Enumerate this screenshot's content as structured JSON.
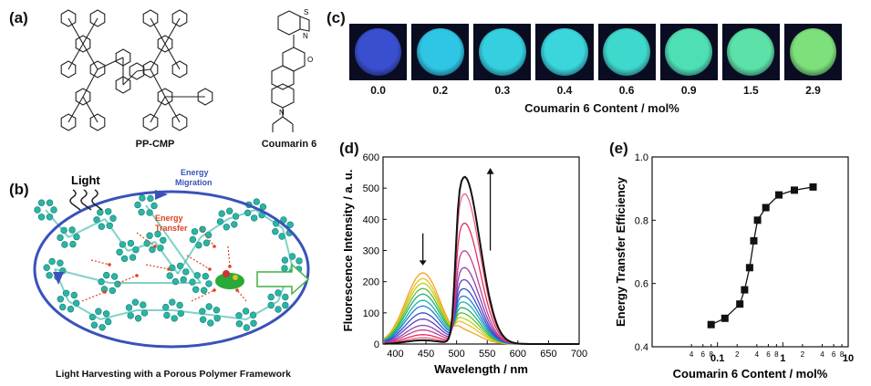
{
  "panels": {
    "a": {
      "label": "(a)",
      "molecule1": "PP-CMP",
      "molecule2": "Coumarin 6"
    },
    "b": {
      "label": "(b)",
      "light": "Light",
      "migration": "Energy\nMigration",
      "migration_l1": "Energy",
      "migration_l2": "Migration",
      "transfer_l1": "Energy",
      "transfer_l2": "Transfer",
      "caption": "Light Harvesting with a Porous Polymer Framework"
    },
    "c": {
      "label": "(c)",
      "values": [
        "0.0",
        "0.2",
        "0.3",
        "0.4",
        "0.6",
        "0.9",
        "1.5",
        "2.9"
      ],
      "xlabel": "Coumarin 6 Content / mol%",
      "dish_colors": [
        "#3a4fd0",
        "#2fc6e6",
        "#35d0e0",
        "#3ad6dc",
        "#3ed8cc",
        "#4ee0b4",
        "#5ce2a8",
        "#7ee07a"
      ]
    },
    "d": {
      "label": "(d)"
    },
    "e": {
      "label": "(e)"
    }
  },
  "chart_data": [
    {
      "type": "line",
      "panel": "d",
      "xlabel": "Wavelength / nm",
      "ylabel": "Fluorescence Intensity / a. u.",
      "xlim": [
        380,
        700
      ],
      "ylim": [
        0,
        600
      ],
      "xticks": [
        400,
        450,
        500,
        550,
        600,
        650,
        700
      ],
      "yticks": [
        0,
        100,
        200,
        300,
        400,
        500,
        600
      ],
      "series_note": "peak intensities at ~445 nm (blue band) and ~510 nm (green band)",
      "series": [
        {
          "color": "#f4a020",
          "peak445": 228,
          "peak510": 40
        },
        {
          "color": "#e8c020",
          "peak445": 210,
          "peak510": 60
        },
        {
          "color": "#b8d020",
          "peak445": 195,
          "peak510": 75
        },
        {
          "color": "#60c030",
          "peak445": 178,
          "peak510": 92
        },
        {
          "color": "#20b070",
          "peak445": 160,
          "peak510": 110
        },
        {
          "color": "#20b0b0",
          "peak445": 140,
          "peak510": 130
        },
        {
          "color": "#2080d0",
          "peak445": 122,
          "peak510": 150
        },
        {
          "color": "#3050d0",
          "peak445": 100,
          "peak510": 175
        },
        {
          "color": "#6040c0",
          "peak445": 80,
          "peak510": 205
        },
        {
          "color": "#9040b0",
          "peak445": 60,
          "peak510": 245
        },
        {
          "color": "#c04090",
          "peak445": 45,
          "peak510": 300
        },
        {
          "color": "#e03060",
          "peak445": 30,
          "peak510": 390
        },
        {
          "color": "#f06080",
          "peak445": 20,
          "peak510": 485
        },
        {
          "color": "#111111",
          "peak445": 12,
          "peak510": 540
        }
      ]
    },
    {
      "type": "scatter",
      "panel": "e",
      "xlabel": "Coumarin 6 Content / mol%",
      "ylabel": "Energy Transfer Efficiency",
      "xscale": "log",
      "xlim": [
        0.01,
        10
      ],
      "ylim": [
        0.4,
        1.0
      ],
      "yticks": [
        "0.4",
        "0.6",
        "0.8",
        "1.0"
      ],
      "xtick_labels": [
        "4",
        "6",
        "8",
        "0.1",
        "2",
        "4",
        "6",
        "8",
        "1",
        "2",
        "4",
        "6",
        "8",
        "10"
      ],
      "x": [
        0.08,
        0.13,
        0.22,
        0.26,
        0.31,
        0.36,
        0.41,
        0.55,
        0.87,
        1.5,
        2.9
      ],
      "y": [
        0.47,
        0.49,
        0.535,
        0.58,
        0.65,
        0.735,
        0.8,
        0.84,
        0.88,
        0.895,
        0.905
      ]
    }
  ]
}
